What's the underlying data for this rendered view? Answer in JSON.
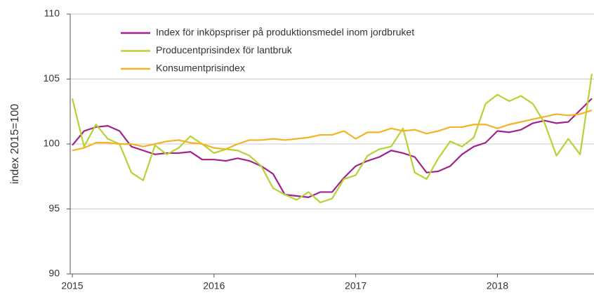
{
  "chart_data": {
    "type": "line",
    "ylabel": "index 2015=100",
    "categories": [
      "2015",
      null,
      null,
      null,
      null,
      null,
      null,
      null,
      null,
      null,
      null,
      null,
      "2016",
      null,
      null,
      null,
      null,
      null,
      null,
      null,
      null,
      null,
      null,
      null,
      "2017",
      null,
      null,
      null,
      null,
      null,
      null,
      null,
      null,
      null,
      null,
      null,
      "2018",
      null,
      null,
      null,
      null,
      null,
      null,
      null,
      null
    ],
    "series": [
      {
        "name": "Index för inköpspriser på produktionsmedel inom jordbruket",
        "color": "#a0238c",
        "values": [
          99.9,
          101.0,
          101.3,
          101.4,
          101.0,
          99.8,
          99.5,
          99.2,
          99.3,
          99.3,
          99.4,
          98.8,
          98.8,
          98.7,
          98.9,
          98.7,
          98.3,
          97.7,
          96.1,
          96.0,
          95.9,
          96.3,
          96.3,
          97.4,
          98.3,
          98.7,
          99.0,
          99.5,
          99.3,
          99.0,
          97.8,
          97.9,
          98.3,
          99.2,
          99.8,
          100.1,
          101.0,
          100.9,
          101.1,
          101.6,
          101.8,
          101.6,
          101.7,
          102.6,
          103.5
        ]
      },
      {
        "name": "Producentprisindex för lantbruk",
        "color": "#b5d334",
        "values": [
          103.5,
          99.8,
          101.5,
          100.4,
          100.0,
          97.8,
          97.2,
          99.9,
          99.2,
          99.7,
          100.6,
          100.0,
          99.3,
          99.6,
          99.5,
          99.1,
          98.3,
          96.6,
          96.1,
          95.7,
          96.3,
          95.5,
          95.8,
          97.3,
          97.6,
          99.1,
          99.6,
          99.8,
          101.2,
          97.8,
          97.3,
          98.9,
          100.2,
          99.8,
          100.5,
          103.1,
          103.8,
          103.3,
          103.7,
          103.1,
          101.6,
          99.1,
          100.4,
          99.2,
          105.4
        ]
      },
      {
        "name": "Konsumentprisindex",
        "color": "#f5b324",
        "values": [
          99.5,
          99.7,
          100.1,
          100.1,
          100.0,
          100.0,
          99.8,
          100.0,
          100.2,
          100.3,
          100.1,
          100.0,
          99.7,
          99.6,
          100.0,
          100.3,
          100.3,
          100.4,
          100.3,
          100.4,
          100.5,
          100.7,
          100.7,
          101.0,
          100.4,
          100.9,
          100.9,
          101.2,
          101.0,
          101.1,
          100.8,
          101.0,
          101.3,
          101.3,
          101.5,
          101.5,
          101.2,
          101.5,
          101.7,
          101.9,
          102.1,
          102.3,
          102.2,
          102.3,
          102.6
        ]
      }
    ],
    "ylim": [
      90,
      110
    ],
    "yticks": [
      90,
      95,
      100,
      105,
      110
    ],
    "grid": true,
    "legend": "upper left"
  }
}
